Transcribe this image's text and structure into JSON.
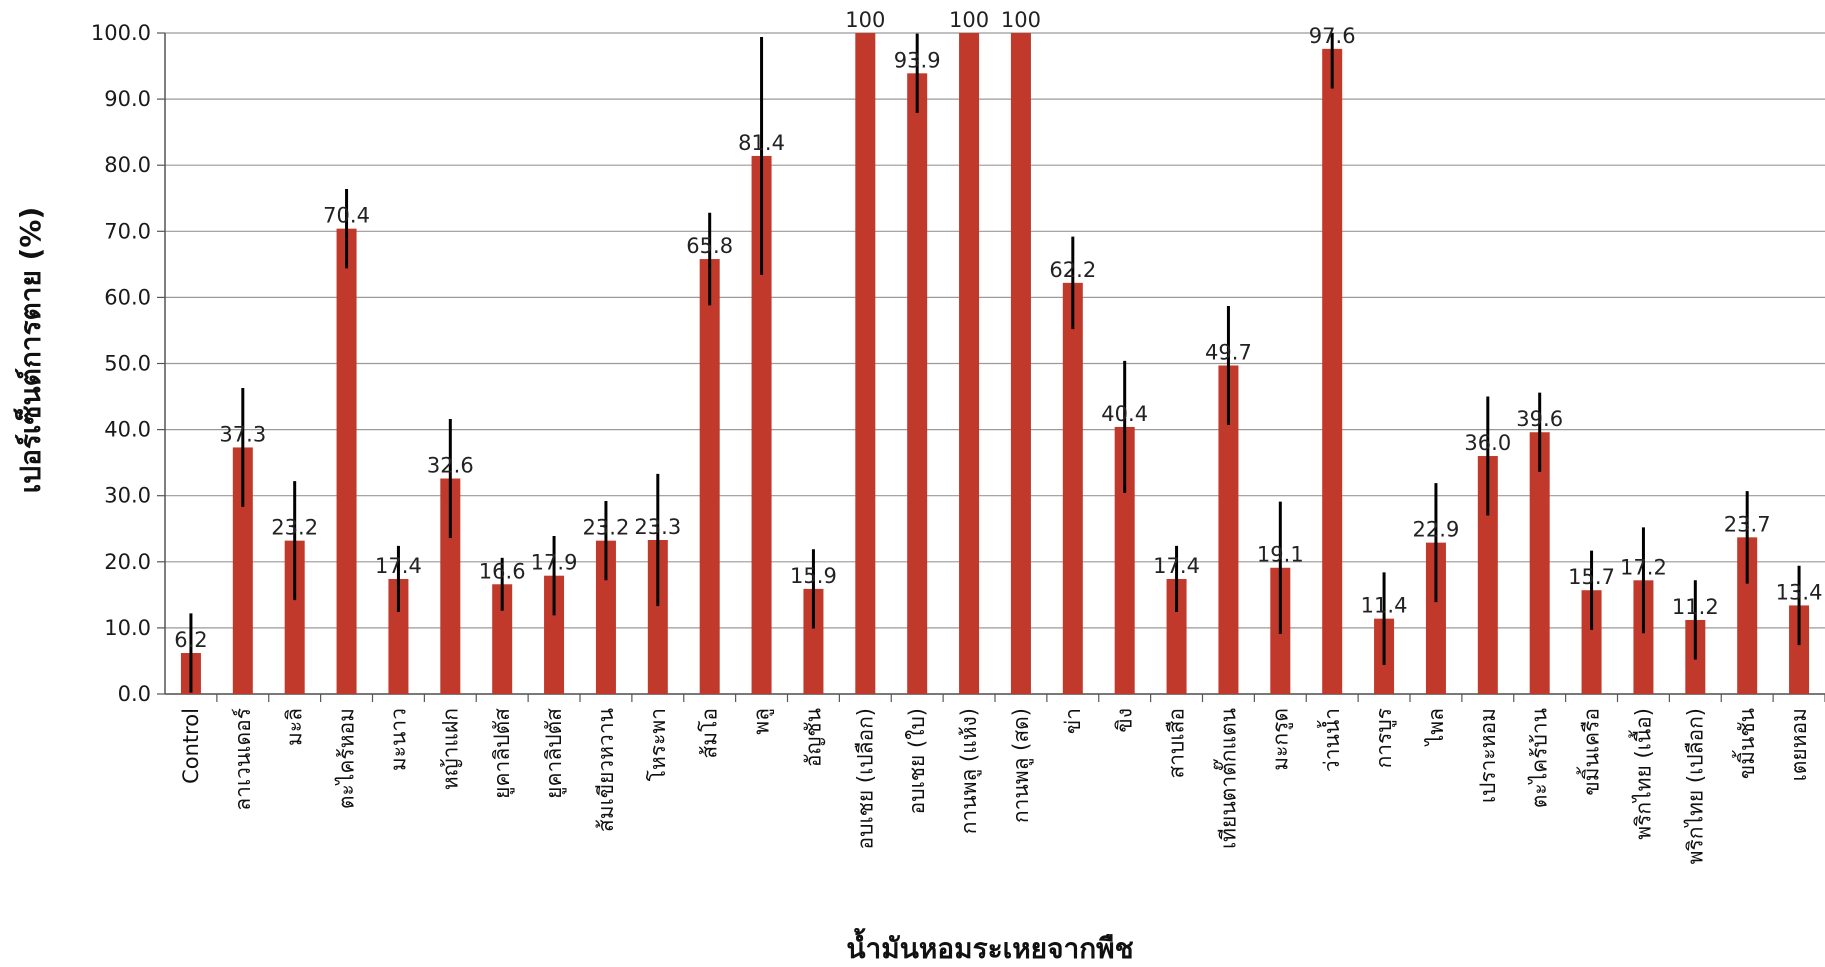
{
  "chart_data": {
    "type": "bar",
    "title": "",
    "xlabel": "น้ำมันหอมระเหยจากพืช",
    "ylabel": "เปอร์เซ็นต์การตาย (%)",
    "ylim": [
      0,
      100
    ],
    "yticks": [
      "0.0",
      "10.0",
      "20.0",
      "30.0",
      "40.0",
      "50.0",
      "60.0",
      "70.0",
      "80.0",
      "90.0",
      "100.0"
    ],
    "grid": true,
    "bar_color": "#c0392b",
    "error_color": "#000000",
    "categories": [
      "Control",
      "ลาเวนเดอร์",
      "มะลิ",
      "ตะไคร้หอม",
      "มะนาว",
      "หญ้าแฝก",
      "ยูคาลิปตัส",
      "ยูคาลิปตัส",
      "ส้มเขียวหวาน",
      "โหระพา",
      "ส้มโอ",
      "พลู",
      "อัญชัน",
      "อบเชย (เปลือก)",
      "อบเชย (ใบ)",
      "กานพลู (แห้ง)",
      "กานพลู (สด)",
      "ข่า",
      "ขิง",
      "สาบเสือ",
      "เทียนตาตั๊กแตน",
      "มะกรูด",
      "ว่านน้ำ",
      "การบูร",
      "ไพล",
      "เปราะหอม",
      "ตะไคร้บ้าน",
      "ขมิ้นเครือ",
      "พริกไทย (เนื้อ)",
      "พริกไทย (เปลือก)",
      "ขมิ้นชัน",
      "เตยหอม"
    ],
    "values": [
      6.2,
      37.3,
      23.2,
      70.4,
      17.4,
      32.6,
      16.6,
      17.9,
      23.2,
      23.3,
      65.8,
      81.4,
      15.9,
      100,
      93.9,
      100,
      100,
      62.2,
      40.4,
      17.4,
      49.7,
      19.1,
      97.6,
      11.4,
      22.9,
      36.0,
      39.6,
      15.7,
      17.2,
      11.2,
      23.7,
      13.4
    ],
    "value_labels": [
      "6.2",
      "37.3",
      "23.2",
      "70.4",
      "17.4",
      "32.6",
      "16.6",
      "17.9",
      "23.2",
      "23.3",
      "65.8",
      "81.4",
      "15.9",
      "100",
      "93.9",
      "100",
      "100",
      "62.2",
      "40.4",
      "17.4",
      "49.7",
      "19.1",
      "97.6",
      "11.4",
      "22.9",
      "36.0",
      "39.6",
      "15.7",
      "17.2",
      "11.2",
      "23.7",
      "13.4"
    ],
    "errors": [
      6,
      9,
      9,
      6,
      5,
      9,
      4,
      6,
      6,
      10,
      7,
      18,
      6,
      0,
      6,
      0,
      0,
      7,
      10,
      5,
      9,
      10,
      6,
      7,
      9,
      9,
      6,
      6,
      8,
      6,
      7,
      6
    ]
  }
}
